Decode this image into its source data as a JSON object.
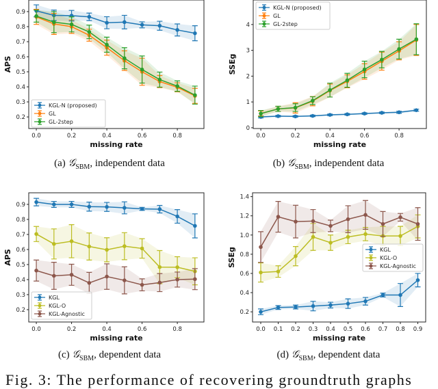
{
  "colors": {
    "blue": "#1f77b4",
    "orange": "#ff7f0e",
    "green": "#2ca02c",
    "olive": "#bcbd22",
    "brown": "#8c564b"
  },
  "chart_data": [
    {
      "id": "a",
      "type": "line",
      "xlabel": "missing rate",
      "ylabel": "APS",
      "xlim": [
        -0.043,
        0.951
      ],
      "ylim": [
        0.123,
        0.977
      ],
      "xticks": [
        "0.0",
        "0.2",
        "0.4",
        "0.6",
        "0.8"
      ],
      "yticks": [
        "0.2",
        "0.3",
        "0.4",
        "0.5",
        "0.6",
        "0.7",
        "0.8",
        "0.9"
      ],
      "legend": "lower-left",
      "error_bars": true,
      "shaded_bands": true,
      "x": [
        0,
        0.1,
        0.2,
        0.3,
        0.4,
        0.5,
        0.6,
        0.7,
        0.8,
        0.9
      ],
      "series": [
        {
          "name": "KGL-N (proposed)",
          "color": "#1f77b4",
          "values": [
            0.905,
            0.875,
            0.873,
            0.865,
            0.826,
            0.83,
            0.812,
            0.806,
            0.778,
            0.756
          ],
          "err": [
            0.04,
            0.035,
            0.035,
            0.025,
            0.04,
            0.045,
            0.02,
            0.03,
            0.04,
            0.05
          ]
        },
        {
          "name": "GL",
          "color": "#ff7f0e",
          "values": [
            0.865,
            0.818,
            0.8,
            0.743,
            0.66,
            0.574,
            0.5,
            0.435,
            0.397,
            0.34
          ],
          "err": [
            0.05,
            0.07,
            0.045,
            0.04,
            0.05,
            0.065,
            0.09,
            0.04,
            0.03,
            0.05
          ]
        },
        {
          "name": "GL-2step",
          "color": "#2ca02c",
          "values": [
            0.87,
            0.83,
            0.815,
            0.765,
            0.68,
            0.59,
            0.515,
            0.448,
            0.405,
            0.345
          ],
          "err": [
            0.04,
            0.07,
            0.05,
            0.045,
            0.05,
            0.07,
            0.09,
            0.05,
            0.035,
            0.06
          ]
        }
      ]
    },
    {
      "id": "b",
      "type": "line",
      "xlabel": "missing rate",
      "ylabel": "SSEg",
      "xlim": [
        -0.044,
        0.958
      ],
      "ylim": [
        -0.03,
        4.95
      ],
      "xticks": [
        "0.0",
        "0.2",
        "0.4",
        "0.6",
        "0.8"
      ],
      "yticks": [
        "0",
        "1",
        "2",
        "3",
        "4"
      ],
      "legend": "upper-left",
      "error_bars": true,
      "shaded_bands": true,
      "x": [
        0,
        0.1,
        0.2,
        0.3,
        0.4,
        0.5,
        0.6,
        0.7,
        0.8,
        0.9
      ],
      "series": [
        {
          "name": "KGL-N (proposed)",
          "color": "#1f77b4",
          "values": [
            0.42,
            0.45,
            0.44,
            0.46,
            0.5,
            0.52,
            0.55,
            0.58,
            0.6,
            0.68
          ],
          "err": [
            0.04,
            0.03,
            0.03,
            0.03,
            0.03,
            0.03,
            0.03,
            0.03,
            0.04,
            0.04
          ]
        },
        {
          "name": "GL",
          "color": "#ff7f0e",
          "values": [
            0.55,
            0.73,
            0.77,
            1.03,
            1.44,
            1.8,
            2.18,
            2.58,
            2.98,
            3.4
          ],
          "err": [
            0.1,
            0.1,
            0.2,
            0.18,
            0.25,
            0.25,
            0.3,
            0.35,
            0.35,
            0.6
          ]
        },
        {
          "name": "GL-2step",
          "color": "#2ca02c",
          "values": [
            0.55,
            0.73,
            0.78,
            1.05,
            1.46,
            1.84,
            2.26,
            2.64,
            3.05,
            3.43
          ],
          "err": [
            0.12,
            0.1,
            0.15,
            0.15,
            0.27,
            0.27,
            0.32,
            0.32,
            0.38,
            0.6
          ]
        }
      ]
    },
    {
      "id": "c",
      "type": "line",
      "xlabel": "missing rate",
      "ylabel": "APS",
      "xlim": [
        -0.043,
        0.951
      ],
      "ylim": [
        0.118,
        0.977
      ],
      "xticks": [
        "0.0",
        "0.2",
        "0.4",
        "0.6",
        "0.8"
      ],
      "yticks": [
        "0.2",
        "0.3",
        "0.4",
        "0.5",
        "0.6",
        "0.7",
        "0.8",
        "0.9"
      ],
      "legend": "lower-left",
      "error_bars": true,
      "shaded_bands": true,
      "x": [
        0,
        0.1,
        0.2,
        0.3,
        0.4,
        0.5,
        0.6,
        0.7,
        0.8,
        0.9
      ],
      "series": [
        {
          "name": "KGL",
          "color": "#1f77b4",
          "values": [
            0.915,
            0.9,
            0.9,
            0.885,
            0.883,
            0.877,
            0.87,
            0.868,
            0.82,
            0.757
          ],
          "err": [
            0.025,
            0.02,
            0.02,
            0.03,
            0.03,
            0.04,
            0.01,
            0.025,
            0.045,
            0.08
          ]
        },
        {
          "name": "KGL-O",
          "color": "#bcbd22",
          "values": [
            0.703,
            0.637,
            0.655,
            0.62,
            0.598,
            0.622,
            0.607,
            0.483,
            0.482,
            0.455
          ],
          "err": [
            0.05,
            0.1,
            0.11,
            0.09,
            0.08,
            0.09,
            0.065,
            0.11,
            0.07,
            0.09
          ]
        },
        {
          "name": "KGL-Agnostic",
          "color": "#8c564b",
          "values": [
            0.46,
            0.425,
            0.432,
            0.378,
            0.42,
            0.395,
            0.365,
            0.38,
            0.4,
            0.403
          ],
          "err": [
            0.07,
            0.09,
            0.07,
            0.07,
            0.085,
            0.09,
            0.04,
            0.06,
            0.05,
            0.07
          ]
        }
      ]
    },
    {
      "id": "d",
      "type": "line",
      "xlabel": "missing rate",
      "ylabel": "SSEg",
      "xlim": [
        -0.047,
        0.945
      ],
      "ylim": [
        0.094,
        1.44
      ],
      "xticks": [
        "0.0",
        "0.1",
        "0.2",
        "0.3",
        "0.4",
        "0.5",
        "0.6",
        "0.7",
        "0.8",
        "0.9"
      ],
      "yticks": [
        "0.2",
        "0.4",
        "0.6",
        "0.8",
        "1.0",
        "1.2",
        "1.4"
      ],
      "legend": "center-right",
      "error_bars": true,
      "shaded_bands": true,
      "x": [
        0,
        0.1,
        0.2,
        0.3,
        0.4,
        0.5,
        0.6,
        0.7,
        0.8,
        0.9
      ],
      "series": [
        {
          "name": "KGL",
          "color": "#1f77b4",
          "values": [
            0.2,
            0.245,
            0.25,
            0.26,
            0.27,
            0.285,
            0.31,
            0.375,
            0.375,
            0.53
          ],
          "err": [
            0.03,
            0.02,
            0.02,
            0.05,
            0.03,
            0.05,
            0.04,
            0.02,
            0.12,
            0.07
          ]
        },
        {
          "name": "KGL-O",
          "color": "#bcbd22",
          "values": [
            0.61,
            0.62,
            0.78,
            0.98,
            0.92,
            0.98,
            1.01,
            0.99,
            0.99,
            1.09
          ],
          "err": [
            0.1,
            0.06,
            0.1,
            0.14,
            0.08,
            0.07,
            0.07,
            0.1,
            0.1,
            0.12
          ]
        },
        {
          "name": "KGL-Agnostic",
          "color": "#8c564b",
          "values": [
            0.875,
            1.19,
            1.14,
            1.145,
            1.095,
            1.165,
            1.21,
            1.115,
            1.185,
            1.115
          ],
          "err": [
            0.16,
            0.16,
            0.17,
            0.12,
            0.06,
            0.14,
            0.15,
            0.13,
            0.04,
            0.17
          ]
        }
      ]
    }
  ],
  "captions": [
    {
      "label": "(a)",
      "symbol": "𝒢",
      "sub": "SBM",
      "text": ", independent data"
    },
    {
      "label": "(b)",
      "symbol": "𝒢",
      "sub": "SBM",
      "text": ", independent data"
    },
    {
      "label": "(c)",
      "symbol": "𝒢",
      "sub": "SBM",
      "text": ", dependent data"
    },
    {
      "label": "(d)",
      "symbol": "𝒢",
      "sub": "SBM",
      "text": ", dependent data"
    }
  ],
  "figure_caption": "Fig. 3: The performance of recovering groundtruth graphs"
}
